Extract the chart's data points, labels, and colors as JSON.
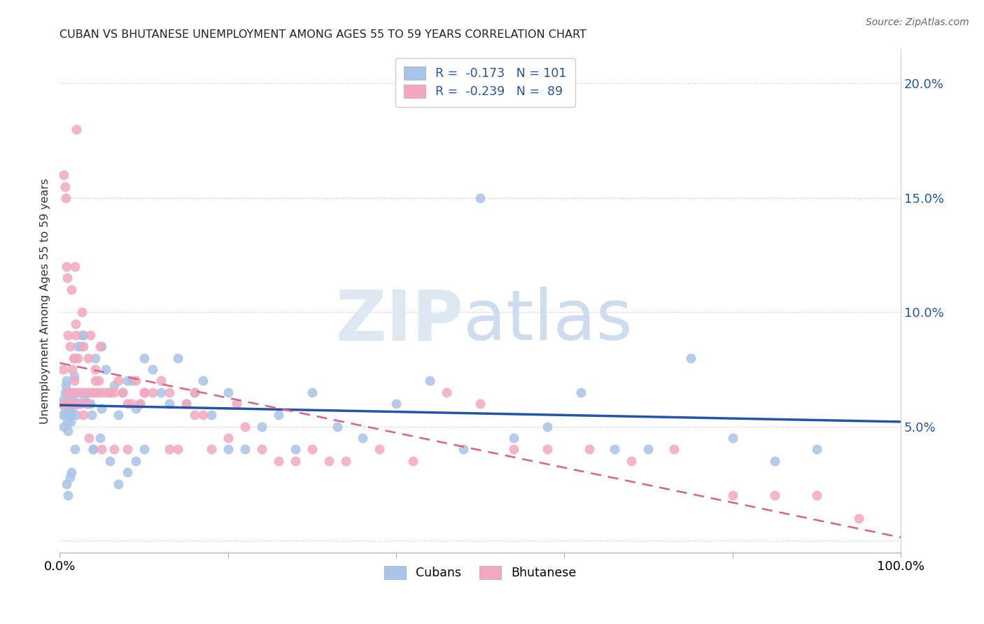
{
  "title": "CUBAN VS BHUTANESE UNEMPLOYMENT AMONG AGES 55 TO 59 YEARS CORRELATION CHART",
  "source": "Source: ZipAtlas.com",
  "ylabel": "Unemployment Among Ages 55 to 59 years",
  "xlim": [
    0.0,
    1.0
  ],
  "ylim": [
    -0.005,
    0.215
  ],
  "cuban_color": "#a8c4e8",
  "bhutanese_color": "#f4a8c0",
  "cuban_line_color": "#2255aa",
  "bhutanese_line_color": "#e06080",
  "cubans_R": "-0.173",
  "cubans_N": "101",
  "bhutanese_R": "-0.239",
  "bhutanese_N": "89",
  "cubans_x": [
    0.003,
    0.004,
    0.005,
    0.005,
    0.006,
    0.006,
    0.007,
    0.007,
    0.008,
    0.008,
    0.009,
    0.009,
    0.01,
    0.01,
    0.011,
    0.011,
    0.012,
    0.012,
    0.013,
    0.013,
    0.014,
    0.015,
    0.015,
    0.016,
    0.017,
    0.018,
    0.019,
    0.02,
    0.021,
    0.022,
    0.023,
    0.025,
    0.026,
    0.028,
    0.03,
    0.032,
    0.034,
    0.036,
    0.038,
    0.04,
    0.042,
    0.045,
    0.048,
    0.05,
    0.055,
    0.06,
    0.065,
    0.07,
    0.075,
    0.08,
    0.085,
    0.09,
    0.095,
    0.1,
    0.11,
    0.12,
    0.13,
    0.14,
    0.15,
    0.16,
    0.17,
    0.18,
    0.2,
    0.22,
    0.24,
    0.26,
    0.28,
    0.3,
    0.33,
    0.36,
    0.4,
    0.44,
    0.48,
    0.5,
    0.54,
    0.58,
    0.62,
    0.66,
    0.7,
    0.75,
    0.8,
    0.85,
    0.9,
    0.008,
    0.01,
    0.012,
    0.014,
    0.016,
    0.018,
    0.02,
    0.025,
    0.03,
    0.035,
    0.04,
    0.05,
    0.06,
    0.07,
    0.08,
    0.09,
    0.1,
    0.2
  ],
  "cubans_y": [
    0.06,
    0.055,
    0.062,
    0.05,
    0.058,
    0.065,
    0.068,
    0.055,
    0.07,
    0.06,
    0.052,
    0.06,
    0.048,
    0.065,
    0.058,
    0.06,
    0.06,
    0.055,
    0.055,
    0.052,
    0.062,
    0.058,
    0.065,
    0.06,
    0.072,
    0.08,
    0.06,
    0.065,
    0.085,
    0.065,
    0.06,
    0.085,
    0.09,
    0.09,
    0.062,
    0.06,
    0.065,
    0.06,
    0.055,
    0.04,
    0.08,
    0.065,
    0.045,
    0.085,
    0.075,
    0.065,
    0.068,
    0.055,
    0.065,
    0.07,
    0.07,
    0.058,
    0.06,
    0.08,
    0.075,
    0.065,
    0.06,
    0.08,
    0.06,
    0.065,
    0.07,
    0.055,
    0.065,
    0.04,
    0.05,
    0.055,
    0.04,
    0.065,
    0.05,
    0.045,
    0.06,
    0.07,
    0.04,
    0.15,
    0.045,
    0.05,
    0.065,
    0.04,
    0.04,
    0.08,
    0.045,
    0.035,
    0.04,
    0.025,
    0.02,
    0.028,
    0.03,
    0.062,
    0.04,
    0.055,
    0.06,
    0.065,
    0.06,
    0.04,
    0.058,
    0.035,
    0.025,
    0.03,
    0.035,
    0.04,
    0.04
  ],
  "bhutanese_x": [
    0.003,
    0.004,
    0.005,
    0.006,
    0.007,
    0.008,
    0.009,
    0.01,
    0.011,
    0.012,
    0.013,
    0.014,
    0.015,
    0.016,
    0.017,
    0.018,
    0.019,
    0.02,
    0.021,
    0.022,
    0.024,
    0.026,
    0.028,
    0.03,
    0.032,
    0.034,
    0.036,
    0.038,
    0.04,
    0.042,
    0.044,
    0.046,
    0.048,
    0.05,
    0.055,
    0.06,
    0.065,
    0.07,
    0.075,
    0.08,
    0.085,
    0.09,
    0.095,
    0.1,
    0.11,
    0.12,
    0.13,
    0.14,
    0.15,
    0.16,
    0.17,
    0.18,
    0.2,
    0.21,
    0.22,
    0.24,
    0.26,
    0.28,
    0.3,
    0.32,
    0.34,
    0.38,
    0.42,
    0.46,
    0.5,
    0.54,
    0.58,
    0.63,
    0.68,
    0.73,
    0.8,
    0.85,
    0.9,
    0.95,
    0.007,
    0.01,
    0.013,
    0.016,
    0.019,
    0.022,
    0.028,
    0.035,
    0.042,
    0.05,
    0.065,
    0.08,
    0.1,
    0.13,
    0.16
  ],
  "bhutanese_y": [
    0.06,
    0.075,
    0.16,
    0.155,
    0.15,
    0.12,
    0.115,
    0.09,
    0.065,
    0.085,
    0.06,
    0.11,
    0.075,
    0.065,
    0.07,
    0.12,
    0.09,
    0.18,
    0.08,
    0.06,
    0.065,
    0.1,
    0.085,
    0.065,
    0.06,
    0.08,
    0.09,
    0.065,
    0.065,
    0.075,
    0.065,
    0.07,
    0.085,
    0.065,
    0.065,
    0.065,
    0.065,
    0.07,
    0.065,
    0.06,
    0.06,
    0.07,
    0.06,
    0.065,
    0.065,
    0.07,
    0.065,
    0.04,
    0.06,
    0.065,
    0.055,
    0.04,
    0.045,
    0.06,
    0.05,
    0.04,
    0.035,
    0.035,
    0.04,
    0.035,
    0.035,
    0.04,
    0.035,
    0.065,
    0.06,
    0.04,
    0.04,
    0.04,
    0.035,
    0.04,
    0.02,
    0.02,
    0.02,
    0.01,
    0.06,
    0.065,
    0.06,
    0.08,
    0.095,
    0.06,
    0.055,
    0.045,
    0.07,
    0.04,
    0.04,
    0.04,
    0.065,
    0.04,
    0.055
  ]
}
